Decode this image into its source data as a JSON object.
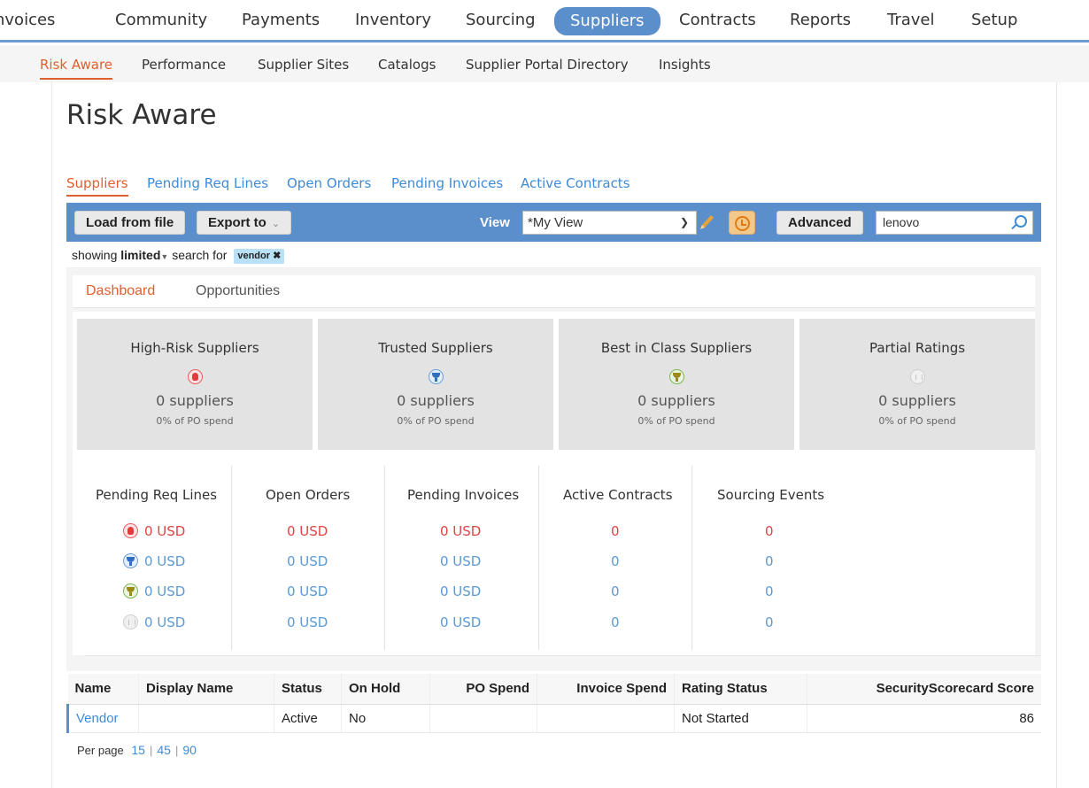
{
  "top_nav": {
    "items": [
      "nvoices",
      "Community",
      "Payments",
      "Inventory",
      "Sourcing",
      "Suppliers",
      "Contracts",
      "Reports",
      "Travel",
      "Setup"
    ],
    "active": "Suppliers"
  },
  "sub_nav": {
    "items": [
      "Risk Aware",
      "Performance",
      "Supplier Sites",
      "Catalogs",
      "Supplier Portal Directory",
      "Insights"
    ],
    "active": "Risk Aware"
  },
  "page_title": "Risk Aware",
  "tabs": {
    "items": [
      "Suppliers",
      "Pending Req Lines",
      "Open Orders",
      "Pending Invoices",
      "Active Contracts"
    ],
    "active": "Suppliers"
  },
  "toolbar": {
    "load_label": "Load from file",
    "export_label": "Export to",
    "view_label": "View",
    "view_value": "*My View",
    "advanced_label": "Advanced",
    "search_value": "lenovo"
  },
  "filter": {
    "prefix": "showing",
    "mode": "limited",
    "search_for": "search for",
    "pill": "vendor"
  },
  "dashboard": {
    "tabs": [
      "Dashboard",
      "Opportunities"
    ],
    "active": "Dashboard",
    "cards": [
      {
        "title": "High-Risk Suppliers",
        "count": "0 suppliers",
        "spend": "0% of PO spend",
        "icon": "risk-hand-icon"
      },
      {
        "title": "Trusted Suppliers",
        "count": "0 suppliers",
        "spend": "0% of PO spend",
        "icon": "trophy-blue-icon"
      },
      {
        "title": "Best in Class Suppliers",
        "count": "0 suppliers",
        "spend": "0% of PO spend",
        "icon": "trophy-gold-icon"
      },
      {
        "title": "Partial Ratings",
        "count": "0 suppliers",
        "spend": "0% of PO spend",
        "icon": "bar-chart-icon"
      }
    ],
    "metrics": {
      "headers": [
        "Pending Req Lines",
        "Open Orders",
        "Pending Invoices",
        "Active Contracts",
        "Sourcing Events"
      ],
      "rows": [
        [
          "0 USD",
          "0 USD",
          "0 USD",
          "0",
          "0"
        ],
        [
          "0 USD",
          "0 USD",
          "0 USD",
          "0",
          "0"
        ],
        [
          "0 USD",
          "0 USD",
          "0 USD",
          "0",
          "0"
        ],
        [
          "0 USD",
          "0 USD",
          "0 USD",
          "0",
          "0"
        ]
      ]
    }
  },
  "table": {
    "columns": [
      "Name",
      "Display Name",
      "Status",
      "On Hold",
      "PO Spend",
      "Invoice Spend",
      "Rating Status",
      "SecurityScorecard Score"
    ],
    "rows": [
      {
        "name": "Vendor",
        "display_name": "",
        "status": "Active",
        "on_hold": "No",
        "po_spend": "",
        "invoice_spend": "",
        "rating_status": "Not Started",
        "score": "86"
      }
    ]
  },
  "pagination": {
    "label": "Per page",
    "options": [
      "15",
      "45",
      "90"
    ],
    "separator": "|"
  },
  "colors": {
    "accent_blue": "#5b8fcc",
    "active_orange": "#e05f2e",
    "link_blue": "#3f8bd6",
    "risk_red": "#e04545"
  }
}
